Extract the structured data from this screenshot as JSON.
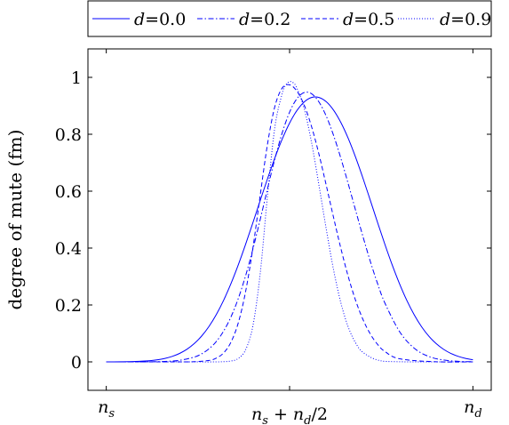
{
  "chart_data": {
    "type": "line",
    "title": "",
    "xlabel": "",
    "ylabel": "degree of mute (fm)",
    "x_tick_labels": [
      {
        "main": "n",
        "sub": "s"
      },
      {
        "main": "n",
        "sub": "s",
        "rest": "+ n",
        "sub2": "d",
        "tail": "/2"
      },
      {
        "main": "n",
        "sub": "d"
      }
    ],
    "x_ticks_data": [
      0,
      0.5,
      1
    ],
    "xlim": [
      -0.05,
      1.05
    ],
    "ylim": [
      -0.1,
      1.1
    ],
    "y_ticks": [
      "0",
      "0.2",
      "0.4",
      "0.6",
      "0.8",
      "1"
    ],
    "y_ticks_values": [
      0,
      0.2,
      0.4,
      0.6,
      0.8,
      1.0
    ],
    "legend_position": "top",
    "grid": false,
    "color": "#0000ff",
    "series": [
      {
        "name": "d=0.0",
        "legend_var": "d",
        "legend_val": "=0.0",
        "dash": "solid",
        "x": [
          0.0,
          0.02,
          0.04,
          0.06,
          0.08,
          0.1,
          0.12,
          0.14,
          0.16,
          0.18,
          0.2,
          0.22,
          0.24,
          0.26,
          0.28,
          0.3,
          0.32,
          0.34,
          0.36,
          0.38,
          0.4,
          0.42,
          0.44,
          0.46,
          0.48,
          0.5,
          0.52,
          0.54,
          0.56,
          0.58,
          0.6,
          0.62,
          0.64,
          0.66,
          0.68,
          0.7,
          0.72,
          0.74,
          0.76,
          0.78,
          0.8,
          0.82,
          0.84,
          0.86,
          0.88,
          0.9,
          0.92,
          0.94,
          0.96,
          0.98,
          1.0
        ],
        "y": [
          0.0,
          0.0001,
          0.0004,
          0.0008,
          0.0014,
          0.0026,
          0.0044,
          0.0075,
          0.0122,
          0.0193,
          0.0297,
          0.0443,
          0.0643,
          0.0906,
          0.1243,
          0.1661,
          0.2163,
          0.2748,
          0.3408,
          0.413,
          0.4894,
          0.5675,
          0.6445,
          0.7174,
          0.7833,
          0.8394,
          0.8835,
          0.9138,
          0.9293,
          0.9294,
          0.9143,
          0.8845,
          0.841,
          0.7853,
          0.7193,
          0.6461,
          0.5685,
          0.4898,
          0.4129,
          0.3403,
          0.274,
          0.2154,
          0.1652,
          0.1235,
          0.09,
          0.0639,
          0.0441,
          0.0296,
          0.0193,
          0.0122,
          0.0075
        ]
      },
      {
        "name": "d=0.2",
        "legend_var": "d",
        "legend_val": "=0.2",
        "dash": "dashdot",
        "x": [
          0.0,
          0.04,
          0.08,
          0.12,
          0.16,
          0.2,
          0.24,
          0.26,
          0.28,
          0.3,
          0.32,
          0.34,
          0.36,
          0.38,
          0.4,
          0.42,
          0.44,
          0.46,
          0.48,
          0.5,
          0.52,
          0.54,
          0.56,
          0.58,
          0.6,
          0.62,
          0.64,
          0.66,
          0.68,
          0.7,
          0.72,
          0.74,
          0.76,
          0.8,
          0.84,
          0.88,
          0.92,
          0.96,
          1.0
        ],
        "y": [
          0.0,
          0.0,
          0.0001,
          0.0004,
          0.0016,
          0.0055,
          0.0169,
          0.0282,
          0.0456,
          0.0714,
          0.1081,
          0.1578,
          0.2224,
          0.3025,
          0.3967,
          0.5013,
          0.6098,
          0.7141,
          0.8056,
          0.8776,
          0.9252,
          0.9468,
          0.9423,
          0.9137,
          0.8636,
          0.796,
          0.7151,
          0.6258,
          0.5329,
          0.441,
          0.354,
          0.2751,
          0.2066,
          0.1063,
          0.0479,
          0.0188,
          0.0065,
          0.0019,
          0.0005
        ]
      },
      {
        "name": "d=0.5",
        "legend_var": "d",
        "legend_val": "=0.5",
        "dash": "dashed",
        "x": [
          0.0,
          0.1,
          0.2,
          0.24,
          0.28,
          0.3,
          0.32,
          0.34,
          0.36,
          0.38,
          0.4,
          0.42,
          0.44,
          0.46,
          0.48,
          0.5,
          0.52,
          0.54,
          0.56,
          0.58,
          0.6,
          0.62,
          0.64,
          0.66,
          0.68,
          0.7,
          0.72,
          0.74,
          0.76,
          0.8,
          0.9,
          1.0
        ],
        "y": [
          0.0,
          0.0,
          0.0001,
          0.0006,
          0.0049,
          0.013,
          0.0314,
          0.0689,
          0.1369,
          0.2467,
          0.4011,
          0.5866,
          0.7672,
          0.8985,
          0.9626,
          0.9738,
          0.9515,
          0.902,
          0.8267,
          0.7303,
          0.6206,
          0.5072,
          0.3983,
          0.2998,
          0.2163,
          0.1493,
          0.0983,
          0.0615,
          0.0364,
          0.0108,
          0.0003,
          0.0
        ]
      },
      {
        "name": "d=0.9",
        "legend_var": "d",
        "legend_val": "=0.9",
        "dash": "dotted",
        "x": [
          0.0,
          0.2,
          0.3,
          0.34,
          0.36,
          0.38,
          0.4,
          0.42,
          0.44,
          0.46,
          0.48,
          0.49,
          0.5,
          0.51,
          0.52,
          0.54,
          0.56,
          0.58,
          0.6,
          0.62,
          0.64,
          0.66,
          0.68,
          0.7,
          0.74,
          0.8,
          1.0
        ],
        "y": [
          0.0,
          0.0,
          0.0,
          0.003,
          0.0122,
          0.0426,
          0.1269,
          0.3119,
          0.5883,
          0.8263,
          0.944,
          0.9731,
          0.9849,
          0.9809,
          0.9621,
          0.8892,
          0.7703,
          0.6218,
          0.4666,
          0.3232,
          0.2069,
          0.1224,
          0.0669,
          0.0338,
          0.0066,
          0.0004,
          0.0
        ]
      }
    ]
  }
}
